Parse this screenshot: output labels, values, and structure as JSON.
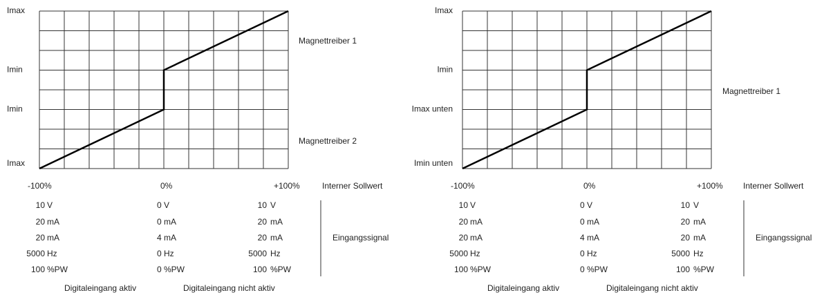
{
  "panels": [
    {
      "y_labels": [
        "Imax",
        "Imin",
        "Imin",
        "Imax"
      ],
      "driver_labels": [
        "Magnettreiber 1",
        "Magnettreiber 2"
      ],
      "x_labels": [
        "-100%",
        "0%",
        "+100%"
      ],
      "x_axis_title": "Interner Sollwert",
      "signal_rows": [
        [
          "10",
          "V",
          "0 V",
          "10",
          "V"
        ],
        [
          "20",
          "mA",
          "0 mA",
          "20",
          "mA"
        ],
        [
          "20",
          "mA",
          "4 mA",
          "20",
          "mA"
        ],
        [
          "5000",
          "Hz",
          "0 Hz",
          "5000",
          "Hz"
        ],
        [
          "100",
          "%PW",
          "0 %PW",
          "100",
          "%PW"
        ]
      ],
      "signal_title": "Eingangssignal",
      "footer": [
        "Digitaleingang aktiv",
        "Digitaleingang nicht aktiv"
      ]
    },
    {
      "y_labels": [
        "Imax",
        "Imin",
        "Imax unten",
        "Imin unten"
      ],
      "driver_labels": [
        "Magnettreiber 1"
      ],
      "x_labels": [
        "-100%",
        "0%",
        "+100%"
      ],
      "x_axis_title": "Interner Sollwert",
      "signal_rows": [
        [
          "10",
          "V",
          "0 V",
          "10",
          "V"
        ],
        [
          "20",
          "mA",
          "0 mA",
          "20",
          "mA"
        ],
        [
          "20",
          "mA",
          "4 mA",
          "20",
          "mA"
        ],
        [
          "5000",
          "Hz",
          "0 Hz",
          "5000",
          "Hz"
        ],
        [
          "100",
          "%PW",
          "0 %PW",
          "100",
          "%PW"
        ]
      ],
      "signal_title": "Eingangssignal",
      "footer": [
        "Digitaleingang aktiv",
        "Digitaleingang nicht aktiv"
      ]
    }
  ]
}
